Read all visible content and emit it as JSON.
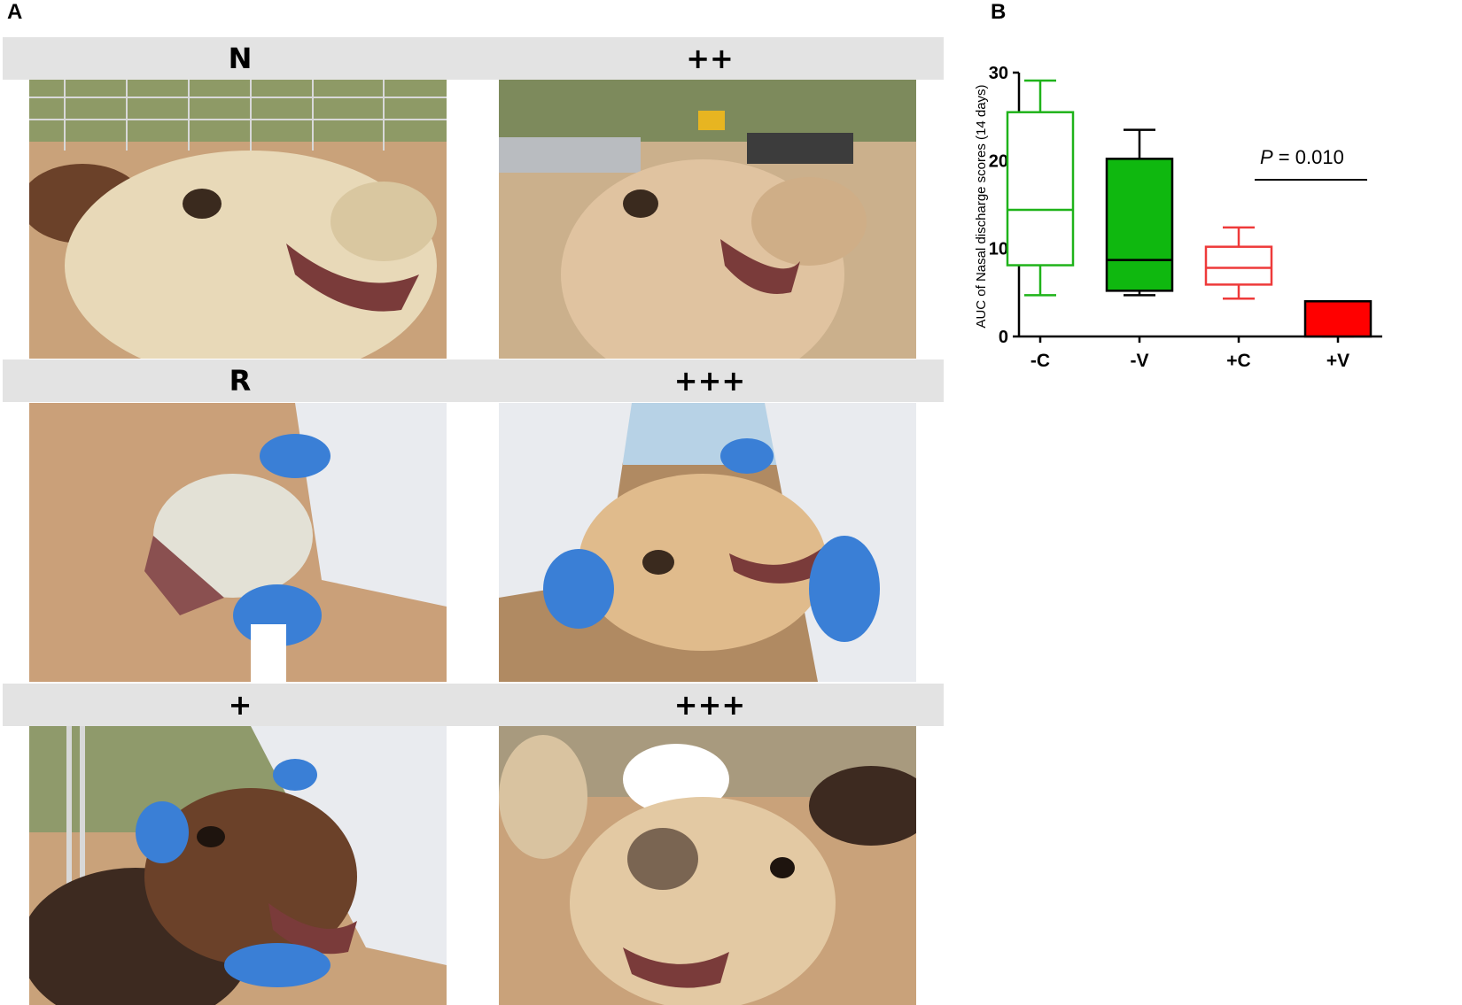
{
  "panels": {
    "a": "A",
    "b": "B"
  },
  "rows": [
    {
      "left_label": "N",
      "right_label": "++"
    },
    {
      "left_label": "R",
      "right_label": "+++"
    },
    {
      "left_label": "+",
      "right_label": "+++"
    }
  ],
  "photo_colors": {
    "sand": "#c9a27a",
    "camel_light": "#e8d9b8",
    "camel_tan": "#e0bb8c",
    "camel_dark": "#6b4129",
    "glove": "#3a7fd6",
    "suit": "#e9ebef",
    "fence": "#d8d8d8"
  },
  "chart_data": {
    "type": "box",
    "ylabel": "AUC of Nasal discharge scores (14 days)",
    "ylim": [
      0,
      30
    ],
    "yticks": [
      0,
      10,
      20,
      30
    ],
    "categories": [
      "-C",
      "-V",
      "+C",
      "+V"
    ],
    "series": [
      {
        "category": "-C",
        "min": 4.7,
        "q1": 8.1,
        "median": 14.4,
        "q3": 25.5,
        "max": 29.1,
        "color": "#1fb31a",
        "filled": false
      },
      {
        "category": "-V",
        "min": 4.7,
        "q1": 5.2,
        "median": 8.7,
        "q3": 20.2,
        "max": 23.5,
        "color": "#0fb80f",
        "filled": true
      },
      {
        "category": "+C",
        "min": 4.3,
        "q1": 5.9,
        "median": 7.8,
        "q3": 10.2,
        "max": 12.4,
        "color": "#ee3a3a",
        "filled": false
      },
      {
        "category": "+V",
        "min": 0,
        "q1": 0,
        "median": 4.0,
        "q3": 4.0,
        "max": 4.0,
        "color": "#ff0000",
        "filled": true
      }
    ],
    "annotation": {
      "p_label": "P",
      "p_value": " = 0.010"
    }
  }
}
